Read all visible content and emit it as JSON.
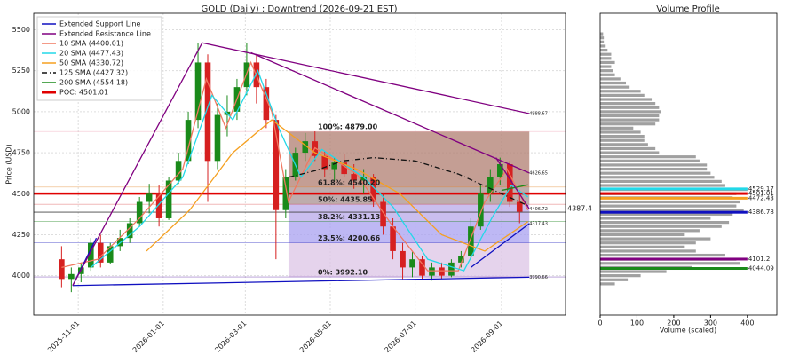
{
  "chart_data": {
    "type": "candlestick",
    "title": "GOLD (Daily) : Downtrend (2026-09-21 EST)",
    "y_label": "Price (USD)",
    "xlim": [
      "2025-09-30",
      "2026-10-17"
    ],
    "xticks": [
      "2025-11-01",
      "2026-01-01",
      "2026-03-01",
      "2026-05-01",
      "2026-07-01",
      "2026-09-01"
    ],
    "ylim": [
      3760,
      5600
    ],
    "yticks": [
      4000,
      4250,
      4500,
      4750,
      5000,
      5250,
      5500
    ],
    "grid": true,
    "up_color": "#1a8a1a",
    "down_color": "#d62020",
    "candles": {
      "x": [
        "2025-10-20",
        "2025-10-27",
        "2025-11-03",
        "2025-11-10",
        "2025-11-17",
        "2025-11-24",
        "2025-12-01",
        "2025-12-08",
        "2025-12-15",
        "2025-12-22",
        "2025-12-29",
        "2026-01-05",
        "2026-01-12",
        "2026-01-19",
        "2026-01-26",
        "2026-02-02",
        "2026-02-09",
        "2026-02-16",
        "2026-02-23",
        "2026-03-02",
        "2026-03-09",
        "2026-03-16",
        "2026-03-23",
        "2026-03-30",
        "2026-04-06",
        "2026-04-13",
        "2026-04-20",
        "2026-04-27",
        "2026-05-04",
        "2026-05-11",
        "2026-05-18",
        "2026-05-25",
        "2026-06-01",
        "2026-06-08",
        "2026-06-15",
        "2026-06-22",
        "2026-06-29",
        "2026-07-06",
        "2026-07-13",
        "2026-07-20",
        "2026-07-27",
        "2026-08-03",
        "2026-08-10",
        "2026-08-17",
        "2026-08-24",
        "2026-08-31",
        "2026-09-07",
        "2026-09-14"
      ],
      "open": [
        4100,
        3980,
        4010,
        4050,
        4200,
        4080,
        4180,
        4230,
        4320,
        4450,
        4500,
        4350,
        4580,
        4700,
        4950,
        5300,
        4700,
        4980,
        5000,
        5150,
        5300,
        5150,
        4950,
        4400,
        4600,
        4750,
        4820,
        4730,
        4650,
        4690,
        4620,
        4580,
        4600,
        4450,
        4300,
        4150,
        4050,
        4100,
        4000,
        4050,
        4000,
        4080,
        4120,
        4300,
        4500,
        4600,
        4680,
        4450
      ],
      "high": [
        4180,
        4050,
        4080,
        4230,
        4250,
        4200,
        4280,
        4350,
        4480,
        4560,
        4550,
        4600,
        4750,
        5000,
        5420,
        5350,
        5050,
        5100,
        5200,
        5420,
        5350,
        5200,
        4980,
        4650,
        4780,
        4870,
        4880,
        4760,
        4720,
        4740,
        4680,
        4650,
        4620,
        4500,
        4350,
        4200,
        4150,
        4120,
        4080,
        4080,
        4100,
        4150,
        4350,
        4550,
        4650,
        4720,
        4700,
        4520
      ],
      "low": [
        3930,
        3900,
        3960,
        4030,
        4050,
        4070,
        4150,
        4200,
        4300,
        4380,
        4300,
        4340,
        4560,
        4680,
        4900,
        4450,
        4650,
        4850,
        4950,
        5100,
        5050,
        4900,
        4100,
        4350,
        4580,
        4700,
        4700,
        4600,
        4580,
        4600,
        4530,
        4500,
        4420,
        4250,
        4100,
        3980,
        3990,
        3980,
        3970,
        3980,
        3990,
        4050,
        4100,
        4280,
        4450,
        4550,
        4420,
        4320
      ],
      "close": [
        3980,
        4010,
        4050,
        4200,
        4080,
        4180,
        4230,
        4320,
        4450,
        4500,
        4350,
        4580,
        4700,
        4950,
        5300,
        4700,
        4980,
        5000,
        5150,
        5300,
        5150,
        4950,
        4400,
        4600,
        4750,
        4820,
        4730,
        4650,
        4690,
        4620,
        4580,
        4600,
        4450,
        4300,
        4150,
        4050,
        4100,
        4000,
        4050,
        4000,
        4080,
        4120,
        4300,
        4500,
        4600,
        4680,
        4450,
        4390
      ]
    },
    "sma": [
      {
        "color": "#f07860",
        "dash": "",
        "x": [
          "2025-10-20",
          "2025-11-15",
          "2025-12-15",
          "2026-01-15",
          "2026-02-01",
          "2026-02-15",
          "2026-03-05",
          "2026-03-20",
          "2026-04-01",
          "2026-04-20",
          "2026-05-20",
          "2026-06-15",
          "2026-07-10",
          "2026-08-01",
          "2026-08-20",
          "2026-09-05",
          "2026-09-20"
        ],
        "values": [
          4050,
          4100,
          4350,
          4650,
          5200,
          4900,
          5300,
          5000,
          4450,
          4780,
          4620,
          4300,
          4030,
          4030,
          4450,
          4650,
          4400
        ]
      },
      {
        "color": "#22d8e8",
        "dash": "",
        "x": [
          "2025-11-10",
          "2025-12-15",
          "2026-01-15",
          "2026-02-05",
          "2026-02-20",
          "2026-03-10",
          "2026-03-25",
          "2026-04-10",
          "2026-04-25",
          "2026-05-25",
          "2026-06-15",
          "2026-07-10",
          "2026-08-05",
          "2026-08-25",
          "2026-09-08",
          "2026-09-20"
        ],
        "values": [
          4050,
          4300,
          4600,
          5100,
          4950,
          5250,
          4900,
          4600,
          4770,
          4600,
          4420,
          4100,
          4030,
          4350,
          4550,
          4480
        ]
      },
      {
        "color": "#f5a020",
        "dash": "",
        "x": [
          "2025-12-20",
          "2026-01-20",
          "2026-02-20",
          "2026-03-20",
          "2026-04-20",
          "2026-05-20",
          "2026-06-20",
          "2026-07-20",
          "2026-08-20",
          "2026-09-20"
        ],
        "values": [
          4150,
          4400,
          4750,
          4950,
          4750,
          4650,
          4500,
          4250,
          4150,
          4330
        ]
      },
      {
        "color": "#111111",
        "dash": "6 3 1 3",
        "x": [
          "2026-04-01",
          "2026-04-20",
          "2026-05-10",
          "2026-06-01",
          "2026-07-01",
          "2026-08-01",
          "2026-09-01",
          "2026-09-20"
        ],
        "values": [
          4600,
          4640,
          4700,
          4720,
          4700,
          4620,
          4500,
          4427
        ]
      },
      {
        "color": "#1a8a1a",
        "dash": "",
        "x": [
          "2026-09-01",
          "2026-09-20"
        ],
        "values": [
          4520,
          4554
        ]
      }
    ],
    "trendlines": [
      {
        "color": "#1010c0",
        "x": [
          "2025-10-28",
          "2026-09-21"
        ],
        "y": [
          3940,
          3990.66
        ],
        "end_label": true
      },
      {
        "color": "#1010c0",
        "x": [
          "2025-10-28",
          "2025-11-14"
        ],
        "y": [
          3940,
          4230
        ],
        "end_label": false
      },
      {
        "color": "#1010c0",
        "x": [
          "2026-08-10",
          "2026-09-21"
        ],
        "y": [
          4050,
          4317.43
        ],
        "end_label": true
      },
      {
        "color": "#800080",
        "x": [
          "2025-10-28",
          "2026-01-29"
        ],
        "y": [
          3940,
          5420
        ],
        "end_label": false
      },
      {
        "color": "#800080",
        "x": [
          "2026-01-29",
          "2026-09-21"
        ],
        "y": [
          5420,
          4988.67
        ],
        "end_label": true
      },
      {
        "color": "#800080",
        "x": [
          "2026-03-05",
          "2026-09-21"
        ],
        "y": [
          5360,
          4626.65
        ],
        "end_label": true
      },
      {
        "color": "#800080",
        "x": [
          "2026-08-28",
          "2026-09-21"
        ],
        "y": [
          4720,
          4406.72
        ],
        "end_label": true
      }
    ],
    "poc": {
      "value": 4501.01,
      "color": "#e00000"
    },
    "level": {
      "value": 4387.4,
      "color": "#444444"
    },
    "fib": {
      "x": [
        "2026-04-01",
        "2026-09-21"
      ],
      "zone_colors": [
        "#dcc4e6",
        "#a8a0f0",
        "#b8a8e8",
        "#a89090",
        "#b07e70"
      ],
      "levels": [
        {
          "value": 3992.1,
          "label": "0%: 3992.10",
          "color": "#5010a0"
        },
        {
          "value": 4200.66,
          "label": "23.5%: 4200.66",
          "color": "#2020c0"
        },
        {
          "value": 4331.13,
          "label": "38.2%: 4331.13",
          "color": "#108010"
        },
        {
          "value": 4435.85,
          "label": "50%: 4435.85",
          "color": "#d01010"
        },
        {
          "value": 4540.2,
          "label": "61.8%: 4540.20",
          "color": "#e08020"
        },
        {
          "value": 4879,
          "label": "100%: 4879.00",
          "color": "#f0a0b0"
        }
      ]
    },
    "legend": [
      {
        "name": "Extended Support Line",
        "color": "#1010c0",
        "width": 1.5,
        "dash": ""
      },
      {
        "name": "Extended Resistance Line",
        "color": "#800080",
        "width": 1.5,
        "dash": ""
      },
      {
        "name": "10 SMA (4400.01)",
        "color": "#f07860",
        "width": 1.5,
        "dash": ""
      },
      {
        "name": "20 SMA (4477.43)",
        "color": "#22d8e8",
        "width": 1.5,
        "dash": ""
      },
      {
        "name": "50 SMA (4330.72)",
        "color": "#f5a020",
        "width": 1.5,
        "dash": ""
      },
      {
        "name": "125 SMA (4427.32)",
        "color": "#111111",
        "width": 1.5,
        "dash": "6 3 1 3"
      },
      {
        "name": "200 SMA (4554.18)",
        "color": "#1a8a1a",
        "width": 1.5,
        "dash": ""
      },
      {
        "name": "POC: 4501.01",
        "color": "#e00000",
        "width": 3,
        "dash": ""
      }
    ],
    "profile": {
      "title": "Volume Profile",
      "x_label": "Volume (scaled)",
      "xlim": [
        0,
        480
      ],
      "xticks": [
        0,
        100,
        200,
        300,
        400
      ],
      "color": "#a0a0a0",
      "levels": [
        3950,
        3975,
        4000,
        4025,
        4050,
        4075,
        4100,
        4125,
        4150,
        4175,
        4200,
        4225,
        4250,
        4275,
        4300,
        4325,
        4350,
        4375,
        4400,
        4425,
        4450,
        4475,
        4500,
        4525,
        4550,
        4575,
        4600,
        4625,
        4650,
        4675,
        4700,
        4725,
        4750,
        4775,
        4800,
        4825,
        4850,
        4875,
        4900,
        4925,
        4950,
        4975,
        5000,
        5025,
        5050,
        5075,
        5100,
        5125,
        5150,
        5175,
        5200,
        5225,
        5250,
        5275,
        5300,
        5325,
        5350,
        5375,
        5400,
        5425,
        5450,
        5475
      ],
      "values": [
        40,
        75,
        110,
        180,
        250,
        380,
        370,
        340,
        260,
        230,
        260,
        300,
        230,
        270,
        330,
        350,
        300,
        360,
        390,
        370,
        380,
        360,
        370,
        400,
        340,
        330,
        310,
        300,
        290,
        290,
        270,
        260,
        160,
        150,
        130,
        120,
        120,
        110,
        90,
        150,
        160,
        160,
        165,
        160,
        150,
        140,
        120,
        110,
        80,
        70,
        55,
        40,
        35,
        30,
        40,
        30,
        30,
        20,
        15,
        10,
        10,
        8
      ],
      "highlights": [
        {
          "value": 4529.17,
          "volume": 400,
          "color": "#22d8e8"
        },
        {
          "value": 4501.01,
          "volume": 400,
          "color": "#e00000"
        },
        {
          "value": 4472.43,
          "volume": 400,
          "color": "#f5a020"
        },
        {
          "value": 4386.78,
          "volume": 400,
          "color": "#1010c0"
        },
        {
          "value": 4101.2,
          "volume": 400,
          "color": "#800080"
        },
        {
          "value": 4044.09,
          "volume": 400,
          "color": "#1a8a1a"
        }
      ]
    }
  }
}
